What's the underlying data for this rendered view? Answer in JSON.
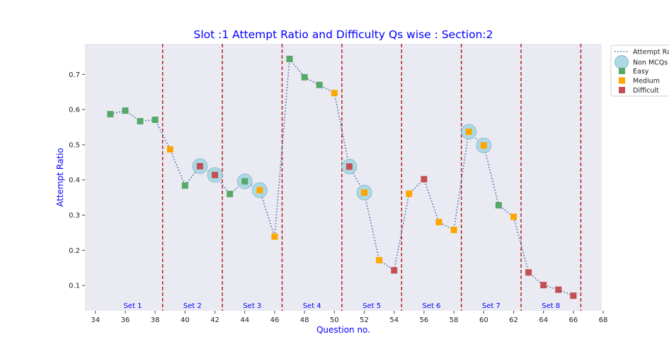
{
  "chart_data": {
    "type": "scatter",
    "title": "Slot :1 Attempt Ratio and Difficulty Qs wise :   Section:2",
    "xlabel": "Question no.",
    "ylabel": "Attempt Ratio",
    "xlim": [
      33.3,
      67.9
    ],
    "ylim": [
      0.028,
      0.787
    ],
    "xticks": [
      34,
      36,
      38,
      40,
      42,
      44,
      46,
      48,
      50,
      52,
      54,
      56,
      58,
      60,
      62,
      64,
      66,
      68
    ],
    "yticks": [
      0.1,
      0.2,
      0.3,
      0.4,
      0.5,
      0.6,
      0.7
    ],
    "grid": false,
    "legend_position": "top-right",
    "legend": {
      "line_label": "Attempt Rat",
      "nonmcq_label": "Non MCQs",
      "easy_label": "Easy",
      "medium_label": "Medium",
      "difficult_label": "Difficult"
    },
    "colors": {
      "Easy": "#55a868",
      "Medium": "#ffa500",
      "Difficult": "#c44e52",
      "line": "#4c72b0",
      "nonmcq": "#add8e6",
      "divider": "#b22222",
      "plot_bg": "#eaeaf2"
    },
    "set_boundaries": [
      38.5,
      42.5,
      46.5,
      50.5,
      54.5,
      58.5,
      62.5,
      66.5
    ],
    "sets": [
      {
        "label": "Set 1",
        "x": 36.5
      },
      {
        "label": "Set 2",
        "x": 40.5
      },
      {
        "label": "Set 3",
        "x": 44.5
      },
      {
        "label": "Set 4",
        "x": 48.5
      },
      {
        "label": "Set 5",
        "x": 52.5
      },
      {
        "label": "Set 6",
        "x": 56.5
      },
      {
        "label": "Set 7",
        "x": 60.5
      },
      {
        "label": "Set 8",
        "x": 64.5
      }
    ],
    "points": [
      {
        "q": 35,
        "ratio": 0.587,
        "difficulty": "Easy",
        "non_mcq": false
      },
      {
        "q": 36,
        "ratio": 0.597,
        "difficulty": "Easy",
        "non_mcq": false
      },
      {
        "q": 37,
        "ratio": 0.567,
        "difficulty": "Easy",
        "non_mcq": false
      },
      {
        "q": 38,
        "ratio": 0.571,
        "difficulty": "Easy",
        "non_mcq": false
      },
      {
        "q": 39,
        "ratio": 0.487,
        "difficulty": "Medium",
        "non_mcq": false
      },
      {
        "q": 40,
        "ratio": 0.384,
        "difficulty": "Easy",
        "non_mcq": false
      },
      {
        "q": 41,
        "ratio": 0.439,
        "difficulty": "Difficult",
        "non_mcq": true
      },
      {
        "q": 42,
        "ratio": 0.414,
        "difficulty": "Difficult",
        "non_mcq": true
      },
      {
        "q": 43,
        "ratio": 0.36,
        "difficulty": "Easy",
        "non_mcq": false
      },
      {
        "q": 44,
        "ratio": 0.396,
        "difficulty": "Easy",
        "non_mcq": true
      },
      {
        "q": 45,
        "ratio": 0.371,
        "difficulty": "Medium",
        "non_mcq": true
      },
      {
        "q": 46,
        "ratio": 0.239,
        "difficulty": "Medium",
        "non_mcq": false
      },
      {
        "q": 47,
        "ratio": 0.744,
        "difficulty": "Easy",
        "non_mcq": false
      },
      {
        "q": 48,
        "ratio": 0.692,
        "difficulty": "Easy",
        "non_mcq": false
      },
      {
        "q": 49,
        "ratio": 0.67,
        "difficulty": "Easy",
        "non_mcq": false
      },
      {
        "q": 50,
        "ratio": 0.647,
        "difficulty": "Medium",
        "non_mcq": false
      },
      {
        "q": 51,
        "ratio": 0.438,
        "difficulty": "Difficult",
        "non_mcq": true
      },
      {
        "q": 52,
        "ratio": 0.364,
        "difficulty": "Medium",
        "non_mcq": true
      },
      {
        "q": 53,
        "ratio": 0.172,
        "difficulty": "Medium",
        "non_mcq": false
      },
      {
        "q": 54,
        "ratio": 0.143,
        "difficulty": "Difficult",
        "non_mcq": false
      },
      {
        "q": 55,
        "ratio": 0.361,
        "difficulty": "Medium",
        "non_mcq": false
      },
      {
        "q": 56,
        "ratio": 0.402,
        "difficulty": "Difficult",
        "non_mcq": false
      },
      {
        "q": 57,
        "ratio": 0.28,
        "difficulty": "Medium",
        "non_mcq": false
      },
      {
        "q": 58,
        "ratio": 0.258,
        "difficulty": "Medium",
        "non_mcq": false
      },
      {
        "q": 59,
        "ratio": 0.537,
        "difficulty": "Medium",
        "non_mcq": true
      },
      {
        "q": 60,
        "ratio": 0.498,
        "difficulty": "Medium",
        "non_mcq": true
      },
      {
        "q": 61,
        "ratio": 0.328,
        "difficulty": "Easy",
        "non_mcq": false
      },
      {
        "q": 62,
        "ratio": 0.295,
        "difficulty": "Medium",
        "non_mcq": false
      },
      {
        "q": 63,
        "ratio": 0.137,
        "difficulty": "Difficult",
        "non_mcq": false
      },
      {
        "q": 64,
        "ratio": 0.101,
        "difficulty": "Difficult",
        "non_mcq": false
      },
      {
        "q": 65,
        "ratio": 0.088,
        "difficulty": "Difficult",
        "non_mcq": false
      },
      {
        "q": 66,
        "ratio": 0.071,
        "difficulty": "Difficult",
        "non_mcq": false
      }
    ]
  }
}
